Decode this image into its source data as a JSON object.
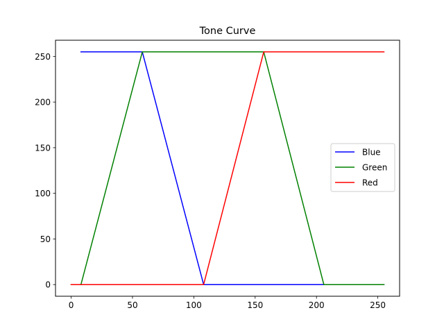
{
  "chart_data": {
    "type": "line",
    "title": "Tone Curve",
    "xlabel": "",
    "ylabel": "",
    "xlim": [
      -12.75,
      267.75
    ],
    "ylim": [
      -12.75,
      267.75
    ],
    "xticks": [
      0,
      50,
      100,
      150,
      200,
      250
    ],
    "yticks": [
      0,
      50,
      100,
      150,
      200,
      250
    ],
    "grid": false,
    "legend_position": "center-right",
    "series": [
      {
        "name": "Blue",
        "color": "#0000ff",
        "x": [
          8,
          58,
          108,
          255
        ],
        "y": [
          255,
          255,
          0,
          0
        ]
      },
      {
        "name": "Green",
        "color": "#008000",
        "x": [
          0,
          8,
          58,
          157,
          206,
          255
        ],
        "y": [
          0,
          0,
          255,
          255,
          0,
          0
        ]
      },
      {
        "name": "Red",
        "color": "#ff0000",
        "x": [
          0,
          108,
          157,
          255
        ],
        "y": [
          0,
          0,
          255,
          255
        ]
      }
    ]
  }
}
